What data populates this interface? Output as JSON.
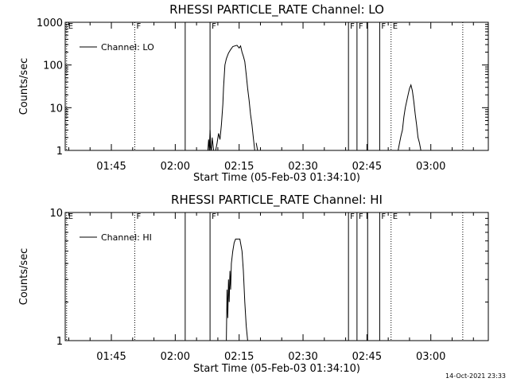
{
  "footer_timestamp": "14-Oct-2021 23:33",
  "colors": {
    "background": "#ffffff",
    "foreground": "#000000"
  },
  "chart_data": [
    {
      "type": "line",
      "title": "RHESSI PARTICLE_RATE Channel: LO",
      "xlabel": "Start Time (05-Feb-03 01:34:10)",
      "ylabel": "Counts/sec",
      "y_scale": "log",
      "xlim": [
        "01:34:10",
        "03:13:30"
      ],
      "ylim": [
        1,
        1000
      ],
      "x_ticks": [
        "01:45",
        "02:00",
        "02:15",
        "02:30",
        "02:45",
        "03:00"
      ],
      "y_ticks": [
        {
          "value": 1,
          "label": "1"
        },
        {
          "value": 10,
          "label": "10"
        },
        {
          "value": 100,
          "label": "100"
        },
        {
          "value": 1000,
          "label": "1000"
        }
      ],
      "legend": {
        "label": "Channel: LO",
        "placement": "top-left"
      },
      "flags": [
        {
          "time": "01:34:30",
          "label": "E",
          "style": "dotted"
        },
        {
          "time": "01:50:30",
          "label": "F",
          "style": "dotted"
        },
        {
          "time": "02:02:20",
          "label": "",
          "style": "solid"
        },
        {
          "time": "02:08:10",
          "label": "F",
          "style": "solid"
        },
        {
          "time": "02:40:40",
          "label": "F",
          "style": "solid"
        },
        {
          "time": "02:42:40",
          "label": "F",
          "style": "solid"
        },
        {
          "time": "02:45:10",
          "label": "",
          "style": "solid"
        },
        {
          "time": "02:48:00",
          "label": "F",
          "style": "solid"
        },
        {
          "time": "02:50:40",
          "label": "E",
          "style": "dotted"
        },
        {
          "time": "03:07:30",
          "label": "",
          "style": "dotted"
        }
      ],
      "series": [
        {
          "name": "Channel: LO",
          "segments": [
            [
              [
                "02:07:40",
                1
              ],
              [
                "02:07:50",
                1.8
              ],
              [
                "02:08:00",
                1
              ],
              [
                "02:08:10",
                3
              ],
              [
                "02:08:20",
                1.2
              ],
              [
                "02:08:30",
                1
              ],
              [
                "02:08:40",
                2
              ],
              [
                "02:09:00",
                1
              ]
            ],
            [
              [
                "02:09:30",
                1
              ],
              [
                "02:09:50",
                1.5
              ],
              [
                "02:10:10",
                2.5
              ],
              [
                "02:10:30",
                1.8
              ],
              [
                "02:10:50",
                4
              ],
              [
                "02:11:10",
                12
              ],
              [
                "02:11:20",
                30
              ],
              [
                "02:11:40",
                100
              ],
              [
                "02:12:00",
                140
              ],
              [
                "02:12:30",
                190
              ],
              [
                "02:13:00",
                230
              ],
              [
                "02:13:30",
                270
              ],
              [
                "02:14:00",
                280
              ],
              [
                "02:14:30",
                290
              ],
              [
                "02:15:00",
                250
              ],
              [
                "02:15:20",
                280
              ],
              [
                "02:15:40",
                200
              ],
              [
                "02:16:00",
                160
              ],
              [
                "02:16:20",
                120
              ],
              [
                "02:16:40",
                60
              ],
              [
                "02:17:00",
                28
              ],
              [
                "02:17:20",
                15
              ],
              [
                "02:17:40",
                7
              ],
              [
                "02:18:00",
                4
              ],
              [
                "02:18:20",
                2
              ],
              [
                "02:18:40",
                1
              ]
            ],
            [
              [
                "02:19:00",
                1.5
              ],
              [
                "02:19:20",
                1
              ]
            ],
            [
              [
                "02:52:20",
                1
              ],
              [
                "02:52:40",
                1.5
              ],
              [
                "02:53:00",
                2.2
              ],
              [
                "02:53:20",
                3
              ],
              [
                "02:53:40",
                6
              ],
              [
                "02:54:00",
                10
              ],
              [
                "02:54:20",
                14
              ],
              [
                "02:54:40",
                20
              ],
              [
                "02:55:00",
                28
              ],
              [
                "02:55:20",
                34
              ],
              [
                "02:55:40",
                25
              ],
              [
                "02:56:00",
                14
              ],
              [
                "02:56:20",
                7
              ],
              [
                "02:56:40",
                4
              ],
              [
                "02:57:00",
                2
              ],
              [
                "02:57:20",
                1.5
              ],
              [
                "02:57:40",
                1
              ]
            ]
          ]
        }
      ]
    },
    {
      "type": "line",
      "title": "RHESSI PARTICLE_RATE Channel: HI",
      "xlabel": "Start Time (05-Feb-03 01:34:10)",
      "ylabel": "Counts/sec",
      "y_scale": "log",
      "xlim": [
        "01:34:10",
        "03:13:30"
      ],
      "ylim": [
        1,
        10
      ],
      "x_ticks": [
        "01:45",
        "02:00",
        "02:15",
        "02:30",
        "02:45",
        "03:00"
      ],
      "y_ticks": [
        {
          "value": 1,
          "label": "1"
        },
        {
          "value": 10,
          "label": "10"
        }
      ],
      "legend": {
        "label": "Channel: HI",
        "placement": "top-left"
      },
      "flags": [
        {
          "time": "01:34:30",
          "label": "E",
          "style": "dotted"
        },
        {
          "time": "01:50:30",
          "label": "F",
          "style": "dotted"
        },
        {
          "time": "02:02:20",
          "label": "",
          "style": "solid"
        },
        {
          "time": "02:08:10",
          "label": "F",
          "style": "solid"
        },
        {
          "time": "02:40:40",
          "label": "F",
          "style": "solid"
        },
        {
          "time": "02:42:40",
          "label": "F",
          "style": "solid"
        },
        {
          "time": "02:45:10",
          "label": "",
          "style": "solid"
        },
        {
          "time": "02:48:00",
          "label": "F",
          "style": "solid"
        },
        {
          "time": "02:50:40",
          "label": "E",
          "style": "dotted"
        },
        {
          "time": "03:07:30",
          "label": "",
          "style": "dotted"
        }
      ],
      "series": [
        {
          "name": "Channel: HI",
          "segments": [
            [
              [
                "02:12:00",
                1
              ],
              [
                "02:12:10",
                2.5
              ],
              [
                "02:12:20",
                1.5
              ],
              [
                "02:12:30",
                3
              ],
              [
                "02:12:40",
                2
              ],
              [
                "02:12:50",
                3.5
              ],
              [
                "02:13:00",
                2.5
              ],
              [
                "02:13:10",
                4
              ],
              [
                "02:13:30",
                5
              ],
              [
                "02:13:50",
                5.8
              ],
              [
                "02:14:10",
                6.2
              ],
              [
                "02:14:40",
                6.2
              ],
              [
                "02:15:10",
                6.2
              ],
              [
                "02:15:40",
                5
              ],
              [
                "02:16:00",
                3.5
              ],
              [
                "02:16:20",
                2
              ],
              [
                "02:16:40",
                1.3
              ],
              [
                "02:17:00",
                1
              ]
            ]
          ]
        }
      ]
    }
  ]
}
